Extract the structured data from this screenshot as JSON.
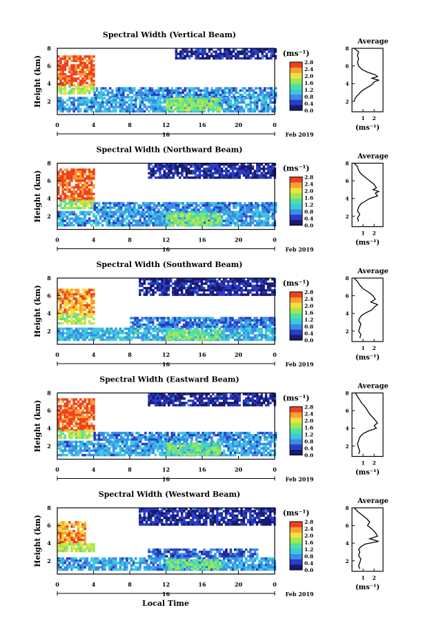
{
  "figure": {
    "xlabel": "Local Time",
    "date_label": "Feb 2019",
    "day_label": "16",
    "colorbar_unit": "(ms⁻¹)",
    "colorbar_ticks": [
      "0.0",
      "0.4",
      "0.8",
      "1.2",
      "1.6",
      "2.0",
      "2.4",
      "2.8"
    ],
    "average_title": "Average",
    "average_xlabel": "(ms⁻¹)",
    "colors": {
      "scale": [
        "#1a1a6e",
        "#2a3cc8",
        "#3a8ce8",
        "#3cc8e0",
        "#50e0a0",
        "#a0e850",
        "#f0e040",
        "#f8a030",
        "#f04020"
      ],
      "missing": "#ffffff"
    }
  },
  "chart_data": [
    {
      "type": "heatmap",
      "title": "Spectral Width (Vertical Beam)",
      "ylabel": "Height (km)",
      "x_ticks": [
        "0",
        "4",
        "8",
        "12",
        "16",
        "20",
        "0"
      ],
      "xlim": [
        0,
        24
      ],
      "y_ticks": [
        "2",
        "4",
        "6",
        "8"
      ],
      "ylim": [
        0.5,
        8
      ],
      "value_unit": "ms⁻¹",
      "colorbar_range": [
        0,
        2.8
      ],
      "regions": [
        {
          "t": [
            0,
            4
          ],
          "h": [
            3.8,
            7.2
          ],
          "width": 2.6
        },
        {
          "t": [
            0,
            4
          ],
          "h": [
            3.0,
            3.8
          ],
          "width": 1.8
        },
        {
          "t": [
            4,
            24
          ],
          "h": [
            2.5,
            3.6
          ],
          "width": 0.8
        },
        {
          "t": [
            0,
            24
          ],
          "h": [
            1.0,
            2.5
          ],
          "width": 0.9
        },
        {
          "t": [
            12,
            18
          ],
          "h": [
            1.0,
            2.4
          ],
          "width": 1.6
        },
        {
          "t": [
            13,
            24
          ],
          "h": [
            6.8,
            8.0
          ],
          "width": 0.3
        }
      ],
      "average_profile": {
        "xlim": [
          0,
          2.8
        ],
        "x_ticks": [
          "1",
          "2"
        ],
        "width": [
          0.2,
          0.6,
          0.5,
          0.6,
          0.5,
          0.6,
          0.9,
          1.4,
          2.1,
          2.3,
          1.8,
          2.4,
          2.0,
          1.9,
          1.7,
          1.3,
          0.9,
          0.6,
          0.3,
          0.2
        ],
        "height": [
          8.0,
          7.6,
          7.2,
          6.8,
          6.4,
          6.0,
          5.6,
          5.3,
          5.0,
          4.8,
          4.6,
          4.4,
          4.2,
          4.0,
          3.8,
          3.5,
          3.2,
          2.8,
          2.4,
          2.0
        ]
      }
    },
    {
      "type": "heatmap",
      "title": "Spectral Width (Northward Beam)",
      "ylabel": "Height (km)",
      "x_ticks": [
        "0",
        "4",
        "8",
        "12",
        "16",
        "20",
        "0"
      ],
      "xlim": [
        0,
        24
      ],
      "y_ticks": [
        "2",
        "4",
        "6",
        "8"
      ],
      "ylim": [
        0.5,
        8
      ],
      "value_unit": "ms⁻¹",
      "colorbar_range": [
        0,
        2.8
      ],
      "regions": [
        {
          "t": [
            0,
            4
          ],
          "h": [
            3.8,
            7.4
          ],
          "width": 2.6
        },
        {
          "t": [
            0,
            4
          ],
          "h": [
            3.0,
            3.8
          ],
          "width": 1.7
        },
        {
          "t": [
            4,
            24
          ],
          "h": [
            2.6,
            3.6
          ],
          "width": 0.8
        },
        {
          "t": [
            0,
            24
          ],
          "h": [
            1.0,
            2.6
          ],
          "width": 0.9
        },
        {
          "t": [
            12,
            18
          ],
          "h": [
            1.0,
            2.4
          ],
          "width": 1.6
        },
        {
          "t": [
            10,
            24
          ],
          "h": [
            6.5,
            8.0
          ],
          "width": 0.3
        }
      ],
      "average_profile": {
        "xlim": [
          0,
          2.8
        ],
        "x_ticks": [
          "1",
          "2"
        ],
        "width": [
          0.2,
          0.5,
          0.6,
          0.8,
          1.2,
          1.6,
          2.0,
          2.2,
          1.9,
          2.4,
          2.1,
          2.3,
          1.6,
          1.2,
          0.8,
          0.6,
          0.5,
          0.7,
          0.5,
          0.6
        ],
        "height": [
          8.0,
          7.6,
          7.2,
          6.8,
          6.4,
          6.0,
          5.6,
          5.2,
          5.0,
          4.8,
          4.6,
          4.3,
          4.0,
          3.7,
          3.4,
          3.0,
          2.6,
          2.2,
          1.8,
          1.4
        ]
      }
    },
    {
      "type": "heatmap",
      "title": "Spectral Width (Southward Beam)",
      "ylabel": "Height (km)",
      "x_ticks": [
        "0",
        "4",
        "8",
        "12",
        "16",
        "20",
        "0"
      ],
      "xlim": [
        0,
        24
      ],
      "y_ticks": [
        "2",
        "4",
        "6",
        "8"
      ],
      "ylim": [
        0.5,
        8
      ],
      "value_unit": "ms⁻¹",
      "colorbar_range": [
        0,
        2.8
      ],
      "regions": [
        {
          "t": [
            0,
            4
          ],
          "h": [
            4.0,
            6.8
          ],
          "width": 2.3
        },
        {
          "t": [
            0,
            4
          ],
          "h": [
            3.0,
            4.0
          ],
          "width": 1.8
        },
        {
          "t": [
            8,
            24
          ],
          "h": [
            2.4,
            3.6
          ],
          "width": 0.7
        },
        {
          "t": [
            0,
            24
          ],
          "h": [
            1.0,
            2.4
          ],
          "width": 1.0
        },
        {
          "t": [
            12,
            18
          ],
          "h": [
            1.0,
            2.2
          ],
          "width": 1.5
        },
        {
          "t": [
            9,
            24
          ],
          "h": [
            6.2,
            8.0
          ],
          "width": 0.3
        }
      ],
      "average_profile": {
        "xlim": [
          0,
          2.8
        ],
        "x_ticks": [
          "1",
          "2"
        ],
        "width": [
          0.2,
          0.5,
          0.7,
          1.0,
          1.5,
          1.9,
          2.1,
          1.7,
          2.3,
          2.0,
          1.8,
          1.3,
          0.9,
          0.7,
          0.6,
          0.8,
          0.7,
          0.6,
          0.8,
          0.7
        ],
        "height": [
          8.0,
          7.6,
          7.2,
          6.8,
          6.4,
          6.0,
          5.6,
          5.3,
          5.0,
          4.7,
          4.4,
          4.1,
          3.8,
          3.5,
          3.2,
          2.8,
          2.4,
          2.0,
          1.6,
          1.2
        ]
      }
    },
    {
      "type": "heatmap",
      "title": "Spectral Width (Eastward Beam)",
      "ylabel": "Height (km)",
      "x_ticks": [
        "0",
        "4",
        "8",
        "12",
        "16",
        "20",
        "0"
      ],
      "xlim": [
        0,
        24
      ],
      "y_ticks": [
        "2",
        "4",
        "6",
        "8"
      ],
      "ylim": [
        0.5,
        8
      ],
      "value_unit": "ms⁻¹",
      "colorbar_range": [
        0,
        2.8
      ],
      "regions": [
        {
          "t": [
            0,
            4
          ],
          "h": [
            3.8,
            7.4
          ],
          "width": 2.6
        },
        {
          "t": [
            0,
            4
          ],
          "h": [
            3.0,
            3.8
          ],
          "width": 1.7
        },
        {
          "t": [
            4,
            24
          ],
          "h": [
            2.6,
            3.6
          ],
          "width": 0.8
        },
        {
          "t": [
            0,
            24
          ],
          "h": [
            1.0,
            2.6
          ],
          "width": 0.9
        },
        {
          "t": [
            12,
            18
          ],
          "h": [
            1.0,
            2.4
          ],
          "width": 1.5
        },
        {
          "t": [
            10,
            24
          ],
          "h": [
            6.6,
            8.0
          ],
          "width": 0.3
        }
      ],
      "average_profile": {
        "xlim": [
          0,
          2.8
        ],
        "x_ticks": [
          "1",
          "2"
        ],
        "width": [
          0.3,
          0.5,
          0.7,
          0.9,
          1.2,
          1.4,
          1.6,
          1.9,
          2.1,
          2.3,
          2.0,
          2.2,
          1.5,
          1.0,
          0.7,
          0.6,
          0.5,
          0.6,
          0.7,
          0.6
        ],
        "height": [
          8.0,
          7.6,
          7.2,
          6.8,
          6.4,
          6.0,
          5.6,
          5.2,
          4.9,
          4.6,
          4.3,
          4.0,
          3.7,
          3.4,
          3.0,
          2.6,
          2.2,
          1.8,
          1.4,
          1.1
        ]
      }
    },
    {
      "type": "heatmap",
      "title": "Spectral Width (Westward Beam)",
      "ylabel": "Height (km)",
      "x_ticks": [
        "0",
        "4",
        "8",
        "12",
        "16",
        "20",
        "0"
      ],
      "xlim": [
        0,
        24
      ],
      "y_ticks": [
        "2",
        "4",
        "6",
        "8"
      ],
      "ylim": [
        0.5,
        8
      ],
      "value_unit": "ms⁻¹",
      "colorbar_range": [
        0,
        2.8
      ],
      "regions": [
        {
          "t": [
            0,
            3
          ],
          "h": [
            4.0,
            6.5
          ],
          "width": 2.3
        },
        {
          "t": [
            0,
            4
          ],
          "h": [
            3.2,
            4.0
          ],
          "width": 1.8
        },
        {
          "t": [
            10,
            22
          ],
          "h": [
            2.4,
            3.4
          ],
          "width": 0.6
        },
        {
          "t": [
            0,
            24
          ],
          "h": [
            1.0,
            2.4
          ],
          "width": 0.9
        },
        {
          "t": [
            12,
            18
          ],
          "h": [
            1.0,
            2.2
          ],
          "width": 1.5
        },
        {
          "t": [
            9,
            24
          ],
          "h": [
            6.0,
            8.0
          ],
          "width": 0.3
        }
      ],
      "average_profile": {
        "xlim": [
          0,
          2.8
        ],
        "x_ticks": [
          "1",
          "2"
        ],
        "width": [
          0.2,
          0.5,
          0.9,
          1.3,
          1.6,
          1.4,
          1.8,
          2.1,
          2.3,
          1.6,
          2.4,
          1.2,
          0.8,
          0.6,
          0.7,
          0.6,
          0.8,
          0.7,
          0.6,
          0.7
        ],
        "height": [
          8.0,
          7.6,
          7.2,
          6.8,
          6.4,
          6.0,
          5.6,
          5.2,
          4.8,
          4.5,
          4.2,
          3.9,
          3.6,
          3.3,
          3.0,
          2.6,
          2.2,
          1.8,
          1.4,
          1.1
        ]
      }
    }
  ]
}
